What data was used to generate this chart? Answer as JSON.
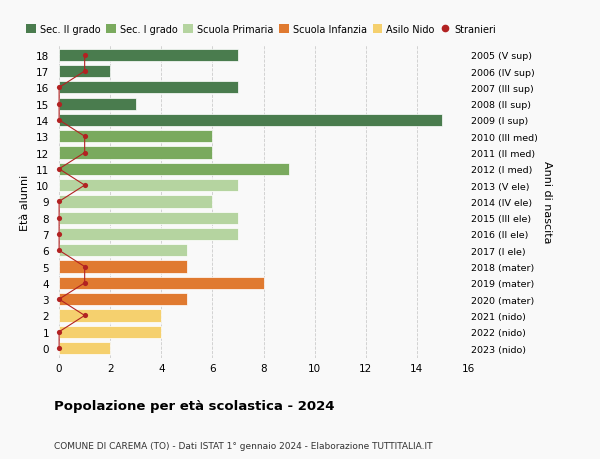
{
  "ages": [
    18,
    17,
    16,
    15,
    14,
    13,
    12,
    11,
    10,
    9,
    8,
    7,
    6,
    5,
    4,
    3,
    2,
    1,
    0
  ],
  "years": [
    "2005 (V sup)",
    "2006 (IV sup)",
    "2007 (III sup)",
    "2008 (II sup)",
    "2009 (I sup)",
    "2010 (III med)",
    "2011 (II med)",
    "2012 (I med)",
    "2013 (V ele)",
    "2014 (IV ele)",
    "2015 (III ele)",
    "2016 (II ele)",
    "2017 (I ele)",
    "2018 (mater)",
    "2019 (mater)",
    "2020 (mater)",
    "2021 (nido)",
    "2022 (nido)",
    "2023 (nido)"
  ],
  "bar_values": [
    7,
    2,
    7,
    3,
    15,
    6,
    6,
    9,
    7,
    6,
    7,
    7,
    5,
    5,
    8,
    5,
    4,
    4,
    2
  ],
  "stranieri_values": [
    1,
    1,
    0,
    0,
    0,
    1,
    1,
    0,
    1,
    0,
    0,
    0,
    0,
    1,
    1,
    0,
    1,
    0,
    0
  ],
  "bar_colors": [
    "#4a7c4e",
    "#4a7c4e",
    "#4a7c4e",
    "#4a7c4e",
    "#4a7c4e",
    "#7aaa5e",
    "#7aaa5e",
    "#7aaa5e",
    "#b5d4a0",
    "#b5d4a0",
    "#b5d4a0",
    "#b5d4a0",
    "#b5d4a0",
    "#e07a30",
    "#e07a30",
    "#e07a30",
    "#f5d06e",
    "#f5d06e",
    "#f5d06e"
  ],
  "color_sec2": "#4a7c4e",
  "color_sec1": "#7aaa5e",
  "color_prim": "#b5d4a0",
  "color_inf": "#e07a30",
  "color_nido": "#f5d06e",
  "color_stranieri": "#b22222",
  "title": "Popolazione per età scolastica - 2024",
  "subtitle": "COMUNE DI CAREMA (TO) - Dati ISTAT 1° gennaio 2024 - Elaborazione TUTTITALIA.IT",
  "ylabel_left": "Età alunni",
  "ylabel_right": "Anni di nascita",
  "xlim": [
    0,
    16
  ],
  "xticks": [
    0,
    2,
    4,
    6,
    8,
    10,
    12,
    14,
    16
  ],
  "bg_color": "#f9f9f9",
  "legend_labels": [
    "Sec. II grado",
    "Sec. I grado",
    "Scuola Primaria",
    "Scuola Infanzia",
    "Asilo Nido",
    "Stranieri"
  ]
}
